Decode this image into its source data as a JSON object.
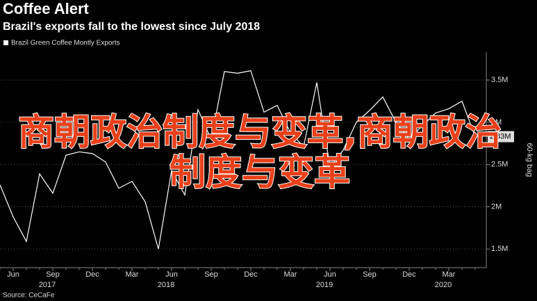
{
  "chart_data": {
    "type": "line",
    "title": "Coffee Alert",
    "subtitle": "Brazil's exports fall to the lowest since July 2018",
    "y_axis_label": "60-kg bag",
    "source": "Source: CeCaFe",
    "overlay_text": "商朝政治制度与变革,商朝政治制度与变革",
    "categories": [
      null,
      "Jun",
      null,
      null,
      "Sep",
      null,
      null,
      "Dec",
      null,
      null,
      "Mar",
      null,
      null,
      "Jun",
      null,
      null,
      "Sep",
      null,
      null,
      "Dec",
      null,
      null,
      "Mar",
      null,
      null,
      "Jun",
      null,
      null,
      "Sep",
      null,
      null,
      "Dec",
      null,
      null,
      "Mar",
      null,
      null
    ],
    "years": [
      null,
      null,
      null,
      null,
      "2017",
      null,
      null,
      null,
      null,
      null,
      null,
      null,
      null,
      "2018",
      null,
      null,
      null,
      null,
      null,
      null,
      null,
      null,
      null,
      null,
      null,
      "2019",
      null,
      null,
      null,
      null,
      null,
      null,
      null,
      null,
      "2020",
      null,
      null
    ],
    "series": [
      {
        "name": "Brazil Green Coffee Montly Exports",
        "color": "#ffffff",
        "values": [
          2.26,
          1.88,
          1.59,
          2.39,
          2.16,
          2.61,
          2.65,
          2.63,
          2.53,
          2.22,
          2.3,
          2.06,
          1.5,
          2.43,
          2.14,
          3.15,
          2.8,
          3.6,
          3.58,
          3.61,
          3.12,
          3.2,
          2.88,
          2.71,
          3.47,
          2.47,
          2.67,
          3.0,
          3.14,
          3.3,
          3.0,
          2.8,
          2.96,
          3.11,
          3.16,
          3.25,
          2.83
        ],
        "value_labels": [
          null,
          null,
          null,
          null,
          null,
          null,
          null,
          null,
          null,
          null,
          null,
          null,
          null,
          null,
          null,
          null,
          null,
          null,
          null,
          null,
          null,
          null,
          null,
          null,
          null,
          null,
          null,
          null,
          null,
          null,
          null,
          null,
          null,
          null,
          null,
          null,
          "2.83M"
        ]
      }
    ],
    "ylim": [
      1.28,
      3.83
    ],
    "yticks": [
      {
        "value": 1.5,
        "label": "1.5M"
      },
      {
        "value": 2,
        "label": "2M"
      },
      {
        "value": 2.5,
        "label": "2.5M"
      },
      {
        "value": 3,
        "label": "3M"
      },
      {
        "value": 3.5,
        "label": "3.5M"
      }
    ],
    "grid": true
  }
}
